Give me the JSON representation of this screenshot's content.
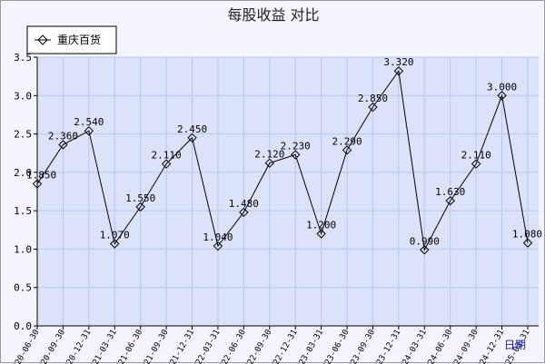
{
  "chart_data": {
    "type": "line",
    "title": "每股收益  对比",
    "xlabel": "日期",
    "ylabel": "",
    "ylim": [
      0,
      3.5
    ],
    "yticks": [
      "0.0",
      "0.5",
      "1.0",
      "1.5",
      "2.0",
      "2.5",
      "3.0",
      "3.5"
    ],
    "grid": true,
    "legend": "top-left",
    "colors": {
      "line": "#000000",
      "plot_bg": "#dde2fb",
      "grid": "#bcc4ee"
    },
    "categories": [
      "2020-06-30",
      "2020-09-30",
      "2020-12-31",
      "2021-03-31",
      "2021-06-30",
      "2021-09-30",
      "2021-12-31",
      "2022-03-31",
      "2022-06-30",
      "2022-09-30",
      "2022-12-31",
      "2023-03-31",
      "2023-06-30",
      "2023-09-30",
      "2023-12-31",
      "2024-03-31",
      "2024-06-30",
      "2024-09-30",
      "2024-12-31",
      "2025-03-31"
    ],
    "series": [
      {
        "name": "重庆百货",
        "values": [
          1.85,
          2.36,
          2.54,
          1.07,
          1.55,
          2.11,
          2.45,
          1.04,
          1.48,
          2.12,
          2.23,
          1.2,
          2.29,
          2.85,
          3.32,
          0.99,
          1.63,
          2.11,
          3.0,
          1.08
        ],
        "labels": [
          "1.850",
          "2.360",
          "2.540",
          "1.070",
          "1.550",
          "2.110",
          "2.450",
          "1.040",
          "1.480",
          "2.120",
          "2.230",
          "1.200",
          "2.290",
          "2.850",
          "3.320",
          "0.990",
          "1.630",
          "2.110",
          "3.000",
          "1.080"
        ]
      }
    ]
  }
}
